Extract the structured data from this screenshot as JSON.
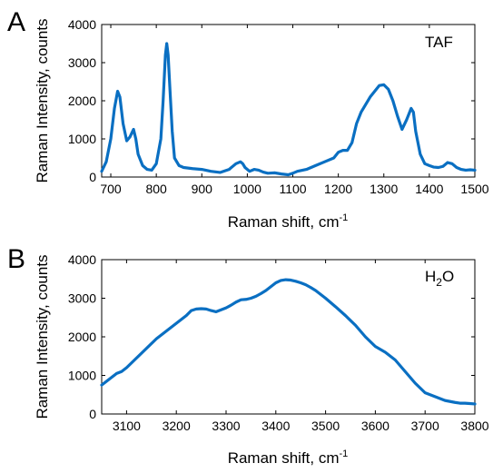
{
  "colors": {
    "series": "#0a6fc2",
    "axis": "#000000"
  },
  "chart_data": [
    {
      "type": "line",
      "panel_label": "A",
      "annotation": "TAF",
      "xlabel": "Raman shift, cm",
      "xlabel_sup": "-1",
      "ylabel": "Raman Intensity, counts",
      "xlim": [
        680,
        1500
      ],
      "ylim": [
        0,
        4000
      ],
      "xticks": [
        700,
        800,
        900,
        1000,
        1100,
        1200,
        1300,
        1400,
        1500
      ],
      "xtick_labels": [
        "700",
        "800",
        "900",
        "1000",
        "1100",
        "1200",
        "1300",
        "1400",
        "1500"
      ],
      "yticks": [
        0,
        1000,
        2000,
        3000,
        4000
      ],
      "ytick_labels": [
        "0",
        "1000",
        "2000",
        "3000",
        "4000"
      ],
      "series": [
        {
          "x": [
            680,
            690,
            700,
            708,
            715,
            720,
            727,
            735,
            742,
            750,
            755,
            760,
            770,
            780,
            790,
            800,
            810,
            815,
            820,
            823,
            826,
            830,
            835,
            840,
            850,
            860,
            880,
            900,
            920,
            940,
            960,
            975,
            985,
            990,
            995,
            1005,
            1015,
            1025,
            1035,
            1045,
            1060,
            1075,
            1090,
            1100,
            1110,
            1130,
            1150,
            1170,
            1190,
            1200,
            1210,
            1220,
            1230,
            1240,
            1250,
            1260,
            1270,
            1280,
            1290,
            1300,
            1310,
            1320,
            1330,
            1340,
            1350,
            1360,
            1365,
            1370,
            1380,
            1390,
            1400,
            1410,
            1420,
            1430,
            1440,
            1450,
            1460,
            1470,
            1480,
            1490,
            1500
          ],
          "y": [
            150,
            400,
            1000,
            1800,
            2250,
            2100,
            1400,
            950,
            1050,
            1250,
            1000,
            600,
            300,
            200,
            180,
            350,
            1000,
            2000,
            3200,
            3500,
            3200,
            2300,
            1200,
            500,
            300,
            250,
            220,
            200,
            150,
            120,
            200,
            350,
            400,
            350,
            250,
            150,
            200,
            180,
            130,
            100,
            110,
            80,
            60,
            100,
            150,
            200,
            300,
            400,
            500,
            650,
            700,
            700,
            900,
            1400,
            1700,
            1900,
            2100,
            2250,
            2400,
            2420,
            2300,
            2000,
            1600,
            1250,
            1500,
            1800,
            1700,
            1200,
            600,
            350,
            300,
            260,
            250,
            280,
            380,
            350,
            250,
            200,
            180,
            190,
            180
          ]
        }
      ]
    },
    {
      "type": "line",
      "panel_label": "B",
      "annotation_main": "H",
      "annotation_sub": "2",
      "annotation_tail": "O",
      "xlabel": "Raman shift, cm",
      "xlabel_sup": "-1",
      "ylabel": "Raman Intensity, counts",
      "xlim": [
        3050,
        3800
      ],
      "ylim": [
        0,
        4000
      ],
      "xticks": [
        3100,
        3200,
        3300,
        3400,
        3500,
        3600,
        3700,
        3800
      ],
      "xtick_labels": [
        "3100",
        "3200",
        "3300",
        "3400",
        "3500",
        "3600",
        "3700",
        "3800"
      ],
      "yticks": [
        0,
        1000,
        2000,
        3000,
        4000
      ],
      "ytick_labels": [
        "0",
        "1000",
        "2000",
        "3000",
        "4000"
      ],
      "series": [
        {
          "x": [
            3050,
            3060,
            3070,
            3080,
            3090,
            3100,
            3120,
            3140,
            3160,
            3180,
            3200,
            3220,
            3230,
            3240,
            3250,
            3260,
            3270,
            3280,
            3290,
            3300,
            3310,
            3320,
            3330,
            3340,
            3350,
            3360,
            3370,
            3380,
            3390,
            3400,
            3410,
            3420,
            3430,
            3440,
            3450,
            3460,
            3470,
            3480,
            3500,
            3520,
            3540,
            3560,
            3580,
            3600,
            3620,
            3640,
            3660,
            3680,
            3700,
            3720,
            3740,
            3760,
            3770,
            3780,
            3790,
            3800
          ],
          "y": [
            750,
            850,
            950,
            1050,
            1100,
            1200,
            1450,
            1700,
            1950,
            2150,
            2350,
            2550,
            2680,
            2720,
            2730,
            2720,
            2680,
            2650,
            2700,
            2750,
            2820,
            2900,
            2960,
            2970,
            3000,
            3050,
            3120,
            3200,
            3300,
            3400,
            3460,
            3480,
            3470,
            3440,
            3400,
            3350,
            3280,
            3200,
            3000,
            2780,
            2550,
            2300,
            2000,
            1750,
            1600,
            1400,
            1100,
            800,
            550,
            450,
            350,
            300,
            280,
            280,
            270,
            260
          ]
        }
      ]
    }
  ]
}
